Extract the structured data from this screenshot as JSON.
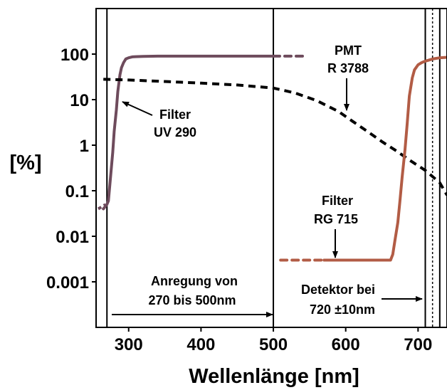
{
  "chart_data": {
    "type": "line",
    "title": "",
    "xlabel": "Wellenlänge [nm]",
    "ylabel": "[%]",
    "xlim": [
      255,
      740
    ],
    "ylim": [
      0.0001,
      1000
    ],
    "yscale": "log",
    "grid": false,
    "x_ticks": [
      300,
      400,
      500,
      600,
      700
    ],
    "x_tick_labels": [
      "300",
      "400",
      "500",
      "600",
      "700"
    ],
    "y_ticks": [
      0.001,
      0.01,
      0.1,
      1,
      10,
      100
    ],
    "y_tick_labels": [
      "0.001",
      "0.01",
      "0.1",
      "1",
      "10",
      "100"
    ],
    "colors": {
      "uv290": "#6e4b5c",
      "rg715": "#b25c45",
      "pmt": "#000000"
    },
    "series": [
      {
        "key": "uv290",
        "x": [
          265,
          270,
          272,
          275,
          278,
          280,
          283,
          285,
          288,
          290,
          293,
          296,
          300,
          305,
          310,
          320,
          340,
          400,
          500
        ],
        "y": [
          0.04,
          0.05,
          0.06,
          0.2,
          0.7,
          2,
          6,
          15,
          35,
          50,
          65,
          78,
          83,
          87,
          88,
          89,
          90,
          90,
          90
        ],
        "dashed_x": [
          500,
          545
        ],
        "dashed_y": [
          90,
          90
        ],
        "dotted_start_x": [
          258,
          268
        ],
        "dotted_start_y": [
          0.04,
          0.05
        ]
      },
      {
        "key": "pmt",
        "style": "dashed",
        "x": [
          265,
          300,
          350,
          400,
          450,
          500,
          530,
          560,
          590,
          610,
          630,
          650,
          670,
          690,
          710,
          730,
          740
        ],
        "y": [
          28,
          27,
          25,
          23,
          21,
          18,
          14,
          9.5,
          5.5,
          3.3,
          2.0,
          1.2,
          0.75,
          0.45,
          0.28,
          0.15,
          0.08
        ]
      },
      {
        "key": "rg715",
        "x": [
          570,
          600,
          640,
          662,
          665,
          668,
          672,
          675,
          678,
          682,
          685,
          688,
          692,
          695,
          700,
          705,
          710,
          720,
          730,
          740
        ],
        "y": [
          0.003,
          0.003,
          0.003,
          0.003,
          0.004,
          0.008,
          0.02,
          0.06,
          0.2,
          0.8,
          3,
          12,
          30,
          45,
          58,
          65,
          70,
          78,
          83,
          85
        ],
        "dashed_x": [
          510,
          570
        ],
        "dashed_y": [
          0.003,
          0.003
        ]
      }
    ],
    "vertical_lines": [
      {
        "x": 270,
        "style": "solid"
      },
      {
        "x": 500,
        "style": "solid"
      },
      {
        "x": 710,
        "style": "solid"
      },
      {
        "x": 720,
        "style": "dotted"
      },
      {
        "x": 730,
        "style": "solid"
      }
    ],
    "annotations": [
      {
        "key": "filter_uv",
        "lines": [
          "Filter",
          "UV 290"
        ]
      },
      {
        "key": "pmt",
        "lines": [
          "PMT",
          "R 3788"
        ]
      },
      {
        "key": "filter_rg",
        "lines": [
          "Filter",
          "RG 715"
        ]
      },
      {
        "key": "anregung",
        "lines": [
          "Anregung von",
          "270 bis 500nm"
        ]
      },
      {
        "key": "detektor",
        "lines": [
          "Detektor bei",
          "720 ±10nm"
        ]
      }
    ]
  }
}
